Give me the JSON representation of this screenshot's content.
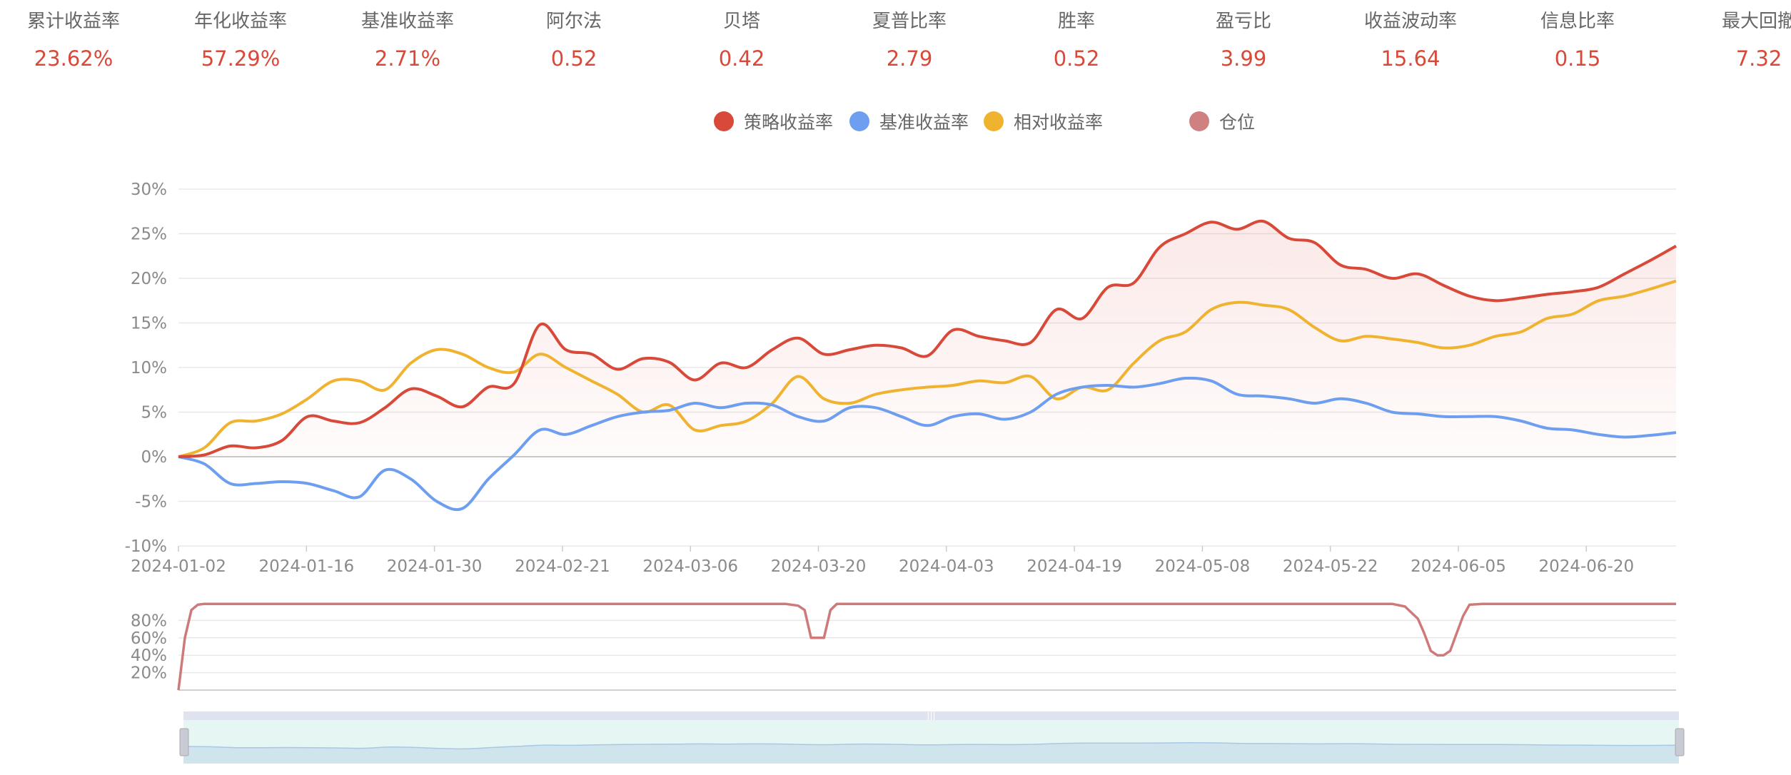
{
  "stats": [
    {
      "label": "累计收益率",
      "value": "23.62%"
    },
    {
      "label": "年化收益率",
      "value": "57.29%"
    },
    {
      "label": "基准收益率",
      "value": "2.71%"
    },
    {
      "label": "阿尔法",
      "value": "0.52"
    },
    {
      "label": "贝塔",
      "value": "0.42"
    },
    {
      "label": "夏普比率",
      "value": "2.79"
    },
    {
      "label": "胜率",
      "value": "0.52"
    },
    {
      "label": "盈亏比",
      "value": "3.99"
    },
    {
      "label": "收益波动率",
      "value": "15.64"
    },
    {
      "label": "信息比率",
      "value": "0.15"
    },
    {
      "label": "最大回撤",
      "value": "7.32"
    }
  ],
  "legend": [
    {
      "label": "策略收益率",
      "color": "#d9493a"
    },
    {
      "label": "基准收益率",
      "color": "#6e9ef0"
    },
    {
      "label": "相对收益率",
      "color": "#f0b330"
    },
    {
      "label": "仓位",
      "color": "#cf8080"
    }
  ],
  "colors": {
    "strategy": "#d9493a",
    "benchmark": "#6e9ef0",
    "relative": "#f0b330",
    "position": "#cf7a7a",
    "grid": "#e8e8e8",
    "axis": "#cccccc",
    "slider_fill": "#d8eef0",
    "slider_handle": "#c8cbd4"
  },
  "chart_data": [
    {
      "type": "line",
      "name": "returns",
      "ylabel_format": "%",
      "ylim": [
        -10,
        30
      ],
      "yticks": [
        "-10%",
        "-5%",
        "0%",
        "5%",
        "10%",
        "15%",
        "20%",
        "25%",
        "30%"
      ],
      "x_tick_labels": [
        "2024-01-02",
        "2024-01-16",
        "2024-01-30",
        "2024-02-21",
        "2024-03-06",
        "2024-03-20",
        "2024-04-03",
        "2024-04-19",
        "2024-05-08",
        "2024-05-22",
        "2024-06-05",
        "2024-06-20"
      ],
      "grid": true,
      "legend_position": "top-center",
      "x": [
        0,
        2,
        4,
        6,
        8,
        10,
        12,
        14,
        16,
        18,
        20,
        22,
        24,
        26,
        28,
        30,
        32,
        34,
        36,
        38,
        40,
        42,
        44,
        46,
        48,
        50,
        52,
        54,
        56,
        58,
        60,
        62,
        64,
        66,
        68,
        70,
        72,
        74,
        76,
        78,
        80,
        82,
        84,
        86,
        88,
        90,
        92,
        94,
        96,
        98,
        100,
        102,
        104,
        106,
        108,
        110,
        112,
        114,
        116
      ],
      "series": [
        {
          "name": "策略收益率",
          "values": [
            0,
            0.2,
            1.2,
            1.0,
            1.8,
            4.5,
            4.0,
            3.8,
            5.5,
            7.6,
            6.8,
            5.6,
            7.8,
            8.2,
            14.8,
            12.0,
            11.5,
            9.8,
            11.0,
            10.6,
            8.6,
            10.5,
            10.0,
            12.0,
            13.3,
            11.5,
            12.0,
            12.5,
            12.2,
            11.3,
            14.2,
            13.5,
            13.0,
            12.8,
            16.5,
            15.5,
            19.0,
            19.5,
            23.5,
            25.0,
            26.3,
            25.5,
            26.4,
            24.5,
            24.0,
            21.5,
            21.0,
            20.0,
            20.5,
            19.2,
            18.0,
            17.5,
            17.8,
            18.2,
            18.5,
            19.0,
            20.5,
            22.0,
            23.62
          ]
        },
        {
          "name": "基准收益率",
          "values": [
            0,
            -0.8,
            -3.0,
            -3.0,
            -2.8,
            -3.0,
            -3.8,
            -4.5,
            -1.5,
            -2.5,
            -5.0,
            -5.8,
            -2.5,
            0.2,
            3.0,
            2.5,
            3.5,
            4.5,
            5.0,
            5.2,
            6.0,
            5.5,
            6.0,
            5.8,
            4.5,
            4.0,
            5.5,
            5.5,
            4.5,
            3.5,
            4.5,
            4.8,
            4.2,
            5.0,
            7.0,
            7.8,
            8.0,
            7.8,
            8.2,
            8.8,
            8.5,
            7.0,
            6.8,
            6.5,
            6.0,
            6.5,
            6.0,
            5.0,
            4.8,
            4.5,
            4.5,
            4.5,
            4.0,
            3.2,
            3.0,
            2.5,
            2.2,
            2.4,
            2.71
          ]
        },
        {
          "name": "相对收益率",
          "values": [
            0,
            1.0,
            3.8,
            4.0,
            4.8,
            6.5,
            8.5,
            8.5,
            7.5,
            10.5,
            12.0,
            11.5,
            10.0,
            9.5,
            11.5,
            10.0,
            8.5,
            7.0,
            5.0,
            5.8,
            3.0,
            3.5,
            4.0,
            6.0,
            9.0,
            6.5,
            6.0,
            7.0,
            7.5,
            7.8,
            8.0,
            8.5,
            8.3,
            9.0,
            6.5,
            7.8,
            7.5,
            10.5,
            13.0,
            14.0,
            16.5,
            17.3,
            17.0,
            16.5,
            14.5,
            13.0,
            13.5,
            13.2,
            12.8,
            12.2,
            12.5,
            13.5,
            14.0,
            15.5,
            16.0,
            17.5,
            18.0,
            18.8,
            19.7
          ]
        }
      ]
    },
    {
      "type": "area",
      "name": "position",
      "ylim": [
        0,
        100
      ],
      "yticks": [
        "20%",
        "40%",
        "60%",
        "80%"
      ],
      "series": [
        {
          "name": "仓位",
          "x": [
            0,
            0.5,
            1.0,
            1.5,
            2,
            47,
            48,
            48.5,
            49,
            49.5,
            50,
            50.5,
            51,
            51.5,
            52,
            94,
            95,
            96,
            96.5,
            97,
            97.5,
            98,
            98.5,
            99,
            99.5,
            100,
            101,
            116
          ],
          "values": [
            0,
            60,
            92,
            98,
            99,
            99,
            97,
            92,
            60,
            60,
            60,
            92,
            99,
            99,
            99,
            99,
            96,
            82,
            65,
            45,
            40,
            40,
            45,
            65,
            85,
            98,
            99,
            99
          ]
        }
      ]
    }
  ]
}
